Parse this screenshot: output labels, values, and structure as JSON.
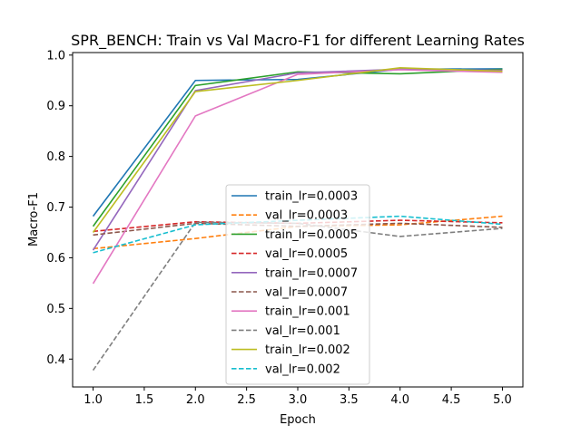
{
  "chart_data": {
    "type": "line",
    "title": "SPR_BENCH: Train vs Val Macro-F1 for different Learning Rates",
    "xlabel": "Epoch",
    "ylabel": "Macro-F1",
    "xlim": [
      0.8,
      5.2
    ],
    "ylim": [
      0.345,
      1.005
    ],
    "xticks": [
      1.0,
      1.5,
      2.0,
      2.5,
      3.0,
      3.5,
      4.0,
      4.5,
      5.0
    ],
    "xtick_labels": [
      "1.0",
      "1.5",
      "2.0",
      "2.5",
      "3.0",
      "3.5",
      "4.0",
      "4.5",
      "5.0"
    ],
    "yticks": [
      0.4,
      0.5,
      0.6,
      0.7,
      0.8,
      0.9,
      1.0
    ],
    "ytick_labels": [
      "0.4",
      "0.5",
      "0.6",
      "0.7",
      "0.8",
      "0.9",
      "1.0"
    ],
    "grid": false,
    "legend_position": "center-bottom",
    "x": [
      1,
      2,
      3,
      4,
      5
    ],
    "series": [
      {
        "name": "train_lr=0.0003",
        "color": "#1f77b4",
        "dash": "solid",
        "values": [
          0.682,
          0.95,
          0.952,
          0.972,
          0.973
        ]
      },
      {
        "name": "val_lr=0.0003",
        "color": "#ff7f0e",
        "dash": "dashed",
        "values": [
          0.618,
          0.638,
          0.662,
          0.665,
          0.682
        ]
      },
      {
        "name": "train_lr=0.0005",
        "color": "#2ca02c",
        "dash": "solid",
        "values": [
          0.662,
          0.94,
          0.967,
          0.963,
          0.972
        ]
      },
      {
        "name": "val_lr=0.0005",
        "color": "#d62728",
        "dash": "dashed",
        "values": [
          0.652,
          0.671,
          0.668,
          0.674,
          0.669
        ]
      },
      {
        "name": "train_lr=0.0007",
        "color": "#9467bd",
        "dash": "solid",
        "values": [
          0.615,
          0.93,
          0.965,
          0.972,
          0.97
        ]
      },
      {
        "name": "val_lr=0.0007",
        "color": "#8c564b",
        "dash": "dashed",
        "values": [
          0.645,
          0.668,
          0.662,
          0.668,
          0.66
        ]
      },
      {
        "name": "train_lr=0.001",
        "color": "#e377c2",
        "dash": "solid",
        "values": [
          0.549,
          0.88,
          0.962,
          0.971,
          0.966
        ]
      },
      {
        "name": "val_lr=0.001",
        "color": "#7f7f7f",
        "dash": "dashed",
        "values": [
          0.378,
          0.67,
          0.668,
          0.642,
          0.658
        ]
      },
      {
        "name": "train_lr=0.002",
        "color": "#bcbd22",
        "dash": "solid",
        "values": [
          0.65,
          0.928,
          0.95,
          0.975,
          0.968
        ]
      },
      {
        "name": "val_lr=0.002",
        "color": "#17becf",
        "dash": "dashed",
        "values": [
          0.61,
          0.665,
          0.674,
          0.682,
          0.666
        ]
      }
    ]
  }
}
